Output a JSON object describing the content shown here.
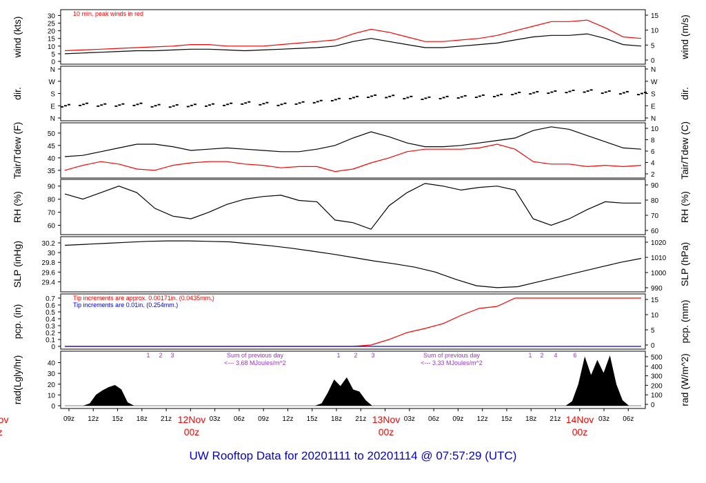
{
  "title": "UW Rooftop Data for 20201111  to  20201114 @ 07:57:29  (UTC)",
  "colors": {
    "ink": "#000000",
    "red": "#ff0000",
    "blue": "#0000dd",
    "purple": "#9933cc",
    "title": "#0000dd"
  },
  "time_axis": {
    "ticks": [
      "09z",
      "12z",
      "15z",
      "18z",
      "21z",
      "",
      "03z",
      "06z",
      "09z",
      "12z",
      "15z",
      "18z",
      "21z",
      "",
      "03z",
      "06z",
      "09z",
      "12z",
      "15z",
      "18z",
      "21z",
      "",
      "03z",
      "06z"
    ],
    "days": [
      {
        "top": "Nov",
        "bottom": "z"
      },
      {
        "top": "12Nov",
        "bottom": "00z"
      },
      {
        "top": "13Nov",
        "bottom": "00z"
      },
      {
        "top": "14Nov",
        "bottom": "00z"
      }
    ]
  },
  "chart_data": [
    {
      "id": "wind",
      "type": "line",
      "ylabel_left": "wind (kts)",
      "ylabel_right": "wind (m/s)",
      "yticks_left": [
        0,
        5,
        10,
        15,
        20,
        25,
        30
      ],
      "ylim": [
        0,
        32
      ],
      "yticks_right": [
        0,
        5,
        10,
        15
      ],
      "annotation": "10 min. peak winds in red",
      "series": [
        {
          "color": "black",
          "values": [
            5,
            5.5,
            6,
            6.5,
            7,
            7,
            7.5,
            8,
            8,
            7.5,
            7,
            7.5,
            8,
            8.5,
            9,
            10,
            13,
            15,
            13,
            11,
            9,
            9,
            10,
            11,
            12,
            14,
            16,
            17,
            17,
            18,
            15,
            11,
            10
          ]
        },
        {
          "color": "red",
          "values": [
            7,
            7.5,
            8,
            8.5,
            9,
            9.5,
            10,
            11,
            11,
            10,
            10,
            10,
            11,
            12,
            13,
            14,
            18,
            21,
            19,
            16,
            13,
            13,
            14,
            15,
            17,
            20,
            23,
            26,
            26,
            27,
            22,
            16,
            15
          ]
        }
      ]
    },
    {
      "id": "dir",
      "type": "scatter",
      "ylabel_left": "dir.",
      "ylabel_right": "dir.",
      "yticks_left": [
        "N",
        "E",
        "S",
        "W",
        "N"
      ],
      "yticks_right": [
        "N",
        "E",
        "S",
        "W",
        "N"
      ],
      "ylim": [
        0,
        360
      ],
      "values": [
        90,
        100,
        95,
        95,
        100,
        90,
        88,
        92,
        95,
        100,
        110,
        105,
        100,
        110,
        120,
        135,
        150,
        160,
        158,
        150,
        145,
        150,
        155,
        160,
        165,
        180,
        185,
        190,
        195,
        198,
        190,
        185,
        180
      ]
    },
    {
      "id": "temp",
      "type": "line",
      "ylabel_left": "Tair/Tdew (F)",
      "ylabel_right": "Tair/Tdew (C)",
      "yticks_left": [
        35,
        40,
        45,
        50
      ],
      "ylim": [
        33,
        53
      ],
      "yticks_right": [
        2,
        4,
        6,
        8,
        10
      ],
      "series": [
        {
          "name": "Tair",
          "color": "black",
          "values": [
            40.5,
            41,
            42.5,
            44,
            45.5,
            45.5,
            44.5,
            43,
            43.5,
            44,
            43.5,
            43,
            42.5,
            42.5,
            43.5,
            45,
            48,
            50.5,
            48.5,
            46,
            44.5,
            44.5,
            45,
            46,
            47,
            48,
            51,
            52.5,
            51.5,
            49,
            46.5,
            44,
            43.5
          ]
        },
        {
          "name": "Tdew",
          "color": "red",
          "values": [
            35,
            37,
            38.5,
            37.5,
            35.5,
            35,
            37,
            38,
            38.5,
            38.5,
            37.5,
            37,
            36,
            36.5,
            36.5,
            34.5,
            35.5,
            38,
            40,
            42.5,
            43.5,
            43.5,
            43.5,
            44,
            45.5,
            43.5,
            38.5,
            37.5,
            37.5,
            36.5,
            37,
            36.5,
            37
          ]
        }
      ]
    },
    {
      "id": "rh",
      "type": "line",
      "ylabel_left": "RH (%)",
      "ylabel_right": "RH (%)",
      "yticks_left": [
        60,
        70,
        80,
        90
      ],
      "ylim": [
        55,
        93
      ],
      "yticks_right": [
        60,
        70,
        80,
        90
      ],
      "values": [
        84,
        80,
        85,
        90,
        85,
        73,
        67,
        65,
        70,
        76,
        80,
        82,
        83,
        79,
        78,
        64,
        62,
        57,
        75,
        85,
        92,
        90,
        87,
        89,
        90,
        87,
        65,
        60,
        65,
        72,
        78,
        77,
        77
      ]
    },
    {
      "id": "slp",
      "type": "line",
      "ylabel_left": "SLP (inHg)",
      "ylabel_right": "SLP (hPa)",
      "yticks_left": [
        29.4,
        29.6,
        29.8,
        30.0,
        30.2
      ],
      "ylim": [
        29.25,
        30.27
      ],
      "yticks_right": [
        990,
        1000,
        1010,
        1020
      ],
      "values": [
        30.15,
        30.17,
        30.19,
        30.21,
        30.23,
        30.24,
        30.24,
        30.23,
        30.22,
        30.18,
        30.14,
        30.09,
        30.03,
        29.97,
        29.9,
        29.83,
        29.77,
        29.7,
        29.6,
        29.45,
        29.32,
        29.28,
        29.3,
        29.4,
        29.5,
        29.6,
        29.7,
        29.8,
        29.88
      ]
    },
    {
      "id": "pcp",
      "type": "line",
      "ylabel_left": "pcp. (in)",
      "ylabel_right": "pcp. (mm)",
      "yticks_left": [
        0.0,
        0.1,
        0.2,
        0.3,
        0.4,
        0.5,
        0.6,
        0.7
      ],
      "ylim": [
        0,
        0.72
      ],
      "yticks_right": [
        0,
        5,
        10,
        15
      ],
      "annotations": [
        "Tip increments are approx. 0.00171in. (0.0435mm.)",
        "Tip increments are 0.01in. (0.254mm.)"
      ],
      "series": [
        {
          "name": "red",
          "color": "red",
          "values": [
            0,
            0,
            0,
            0,
            0,
            0,
            0,
            0,
            0,
            0,
            0,
            0,
            0,
            0,
            0,
            0,
            0,
            0.02,
            0.1,
            0.2,
            0.26,
            0.33,
            0.45,
            0.55,
            0.58,
            0.7,
            0.7,
            0.7,
            0.7,
            0.7,
            0.7,
            0.7,
            0.7
          ]
        },
        {
          "name": "blue",
          "color": "blue",
          "values": [
            0,
            0,
            0,
            0,
            0,
            0,
            0,
            0,
            0,
            0,
            0,
            0,
            0,
            0,
            0,
            0,
            0,
            0,
            0,
            0,
            0,
            0,
            0,
            0,
            0,
            0,
            0,
            0,
            0,
            0,
            0,
            0,
            0
          ]
        }
      ]
    },
    {
      "id": "rad",
      "type": "area",
      "ylabel_left": "rad(Lgly/hr)",
      "ylabel_right": "rad (W/m^2)",
      "yticks_left": [
        0,
        10,
        20,
        30,
        40
      ],
      "ylim": [
        0,
        48
      ],
      "yticks_right": [
        0,
        100,
        200,
        300,
        400,
        500
      ],
      "values": [
        0,
        0,
        0,
        0,
        2,
        10,
        14,
        17,
        19,
        15,
        3,
        0,
        0,
        0,
        0,
        0,
        0,
        0,
        0,
        0,
        0,
        0,
        0,
        0,
        0,
        0,
        0,
        0,
        0,
        0,
        0,
        0,
        0,
        0,
        0,
        0,
        0,
        0,
        0,
        0,
        0,
        2,
        12,
        24,
        18,
        26,
        15,
        13,
        5,
        0,
        0,
        0,
        0,
        0,
        0,
        0,
        0,
        0,
        0,
        0,
        0,
        0,
        0,
        0,
        0,
        0,
        0,
        0,
        0,
        0,
        0,
        0,
        0,
        0,
        0,
        0,
        0,
        0,
        0,
        0,
        0,
        4,
        20,
        45,
        28,
        42,
        30,
        46,
        20,
        5,
        0,
        0,
        0
      ],
      "day_labels": [
        {
          "numbers": [
            "1",
            "2",
            "3"
          ],
          "note": [
            "",
            ""
          ]
        },
        {
          "numbers": [
            "1",
            "2",
            "3"
          ],
          "note": [
            "Sum of previous day",
            "<--- 3.68 MJoules/m^2"
          ]
        },
        {
          "numbers": [
            "1",
            "2",
            "4",
            "6"
          ],
          "note": [
            "Sum of previous day",
            "<--- 3.33 MJoules/m^2"
          ]
        }
      ]
    }
  ]
}
